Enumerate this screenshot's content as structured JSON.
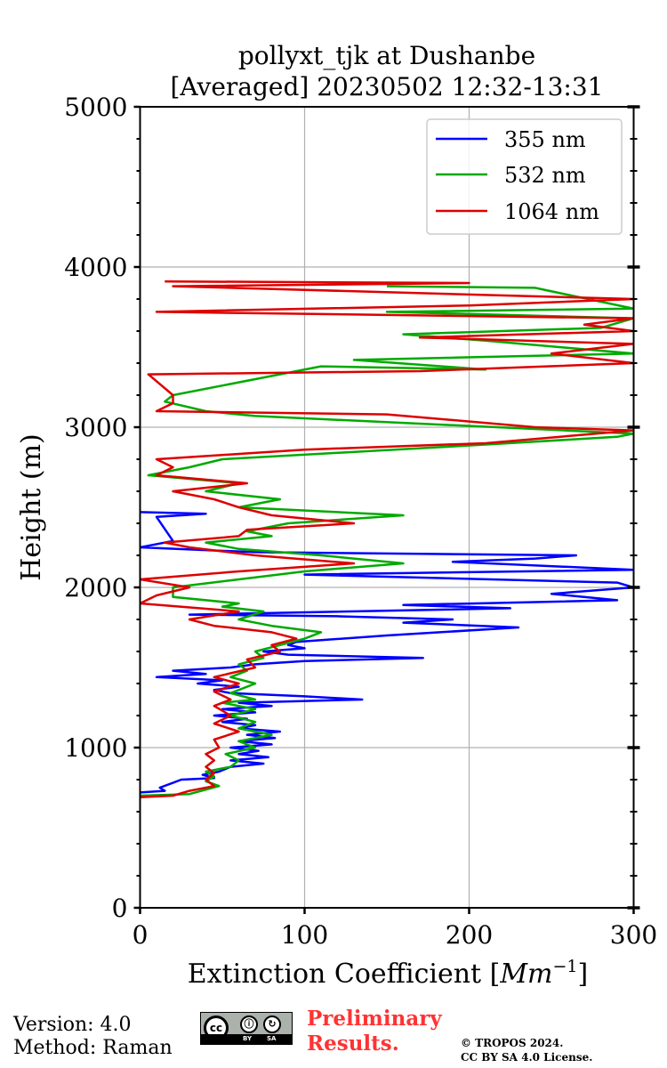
{
  "chart_data": {
    "type": "line",
    "title_line1": "pollyxt_tjk at Dushanbe",
    "title_line2": "[Averaged] 20230502 12:32-13:31",
    "xlabel_text": "Extinction Coefficient [",
    "xlabel_unit_base": "Mm",
    "xlabel_unit_exp": "−1",
    "xlabel_close": "]",
    "ylabel": "Height (m)",
    "xlim": [
      0,
      300
    ],
    "ylim": [
      0,
      5000
    ],
    "xticks": [
      0,
      100,
      200,
      300
    ],
    "yticks": [
      0,
      1000,
      2000,
      3000,
      4000,
      5000
    ],
    "grid": true,
    "legend_position": "top-right",
    "series": [
      {
        "name": "355 nm",
        "color": "#0000ff",
        "points": [
          [
            0,
            720
          ],
          [
            15,
            730
          ],
          [
            12,
            750
          ],
          [
            20,
            780
          ],
          [
            25,
            800
          ],
          [
            45,
            810
          ],
          [
            38,
            830
          ],
          [
            48,
            850
          ],
          [
            55,
            880
          ],
          [
            75,
            900
          ],
          [
            55,
            920
          ],
          [
            78,
            940
          ],
          [
            60,
            960
          ],
          [
            72,
            980
          ],
          [
            55,
            1000
          ],
          [
            80,
            1020
          ],
          [
            60,
            1040
          ],
          [
            82,
            1060
          ],
          [
            65,
            1080
          ],
          [
            85,
            1100
          ],
          [
            60,
            1120
          ],
          [
            70,
            1140
          ],
          [
            50,
            1160
          ],
          [
            65,
            1180
          ],
          [
            45,
            1200
          ],
          [
            70,
            1220
          ],
          [
            50,
            1240
          ],
          [
            80,
            1260
          ],
          [
            60,
            1280
          ],
          [
            135,
            1300
          ],
          [
            100,
            1320
          ],
          [
            55,
            1340
          ],
          [
            45,
            1360
          ],
          [
            60,
            1380
          ],
          [
            35,
            1400
          ],
          [
            50,
            1420
          ],
          [
            10,
            1440
          ],
          [
            40,
            1460
          ],
          [
            20,
            1480
          ],
          [
            55,
            1500
          ],
          [
            70,
            1520
          ],
          [
            100,
            1540
          ],
          [
            172,
            1560
          ],
          [
            90,
            1580
          ],
          [
            75,
            1600
          ],
          [
            100,
            1620
          ],
          [
            90,
            1640
          ],
          [
            95,
            1660
          ],
          [
            150,
            1700
          ],
          [
            230,
            1750
          ],
          [
            160,
            1780
          ],
          [
            190,
            1800
          ],
          [
            120,
            1820
          ],
          [
            30,
            1830
          ],
          [
            225,
            1870
          ],
          [
            160,
            1890
          ],
          [
            290,
            1920
          ],
          [
            250,
            1960
          ],
          [
            300,
            2000
          ],
          [
            290,
            2030
          ],
          [
            100,
            2080
          ],
          [
            300,
            2110
          ],
          [
            190,
            2160
          ],
          [
            240,
            2180
          ],
          [
            265,
            2200
          ],
          [
            70,
            2220
          ],
          [
            0,
            2250
          ],
          [
            20,
            2290
          ],
          [
            10,
            2440
          ],
          [
            40,
            2460
          ],
          [
            0,
            2470
          ]
        ]
      },
      {
        "name": "532 nm",
        "color": "#00aa00",
        "points": [
          [
            0,
            700
          ],
          [
            30,
            710
          ],
          [
            48,
            760
          ],
          [
            40,
            790
          ],
          [
            45,
            820
          ],
          [
            40,
            850
          ],
          [
            55,
            880
          ],
          [
            60,
            920
          ],
          [
            52,
            960
          ],
          [
            70,
            1000
          ],
          [
            60,
            1040
          ],
          [
            80,
            1080
          ],
          [
            60,
            1120
          ],
          [
            70,
            1160
          ],
          [
            55,
            1200
          ],
          [
            70,
            1240
          ],
          [
            50,
            1280
          ],
          [
            70,
            1300
          ],
          [
            55,
            1340
          ],
          [
            70,
            1400
          ],
          [
            55,
            1440
          ],
          [
            65,
            1480
          ],
          [
            60,
            1520
          ],
          [
            75,
            1560
          ],
          [
            70,
            1600
          ],
          [
            85,
            1640
          ],
          [
            100,
            1680
          ],
          [
            110,
            1720
          ],
          [
            80,
            1760
          ],
          [
            60,
            1800
          ],
          [
            75,
            1850
          ],
          [
            50,
            1880
          ],
          [
            60,
            1900
          ],
          [
            20,
            1940
          ],
          [
            20,
            2000
          ],
          [
            60,
            2050
          ],
          [
            100,
            2100
          ],
          [
            160,
            2150
          ],
          [
            110,
            2200
          ],
          [
            60,
            2240
          ],
          [
            40,
            2280
          ],
          [
            80,
            2320
          ],
          [
            65,
            2350
          ],
          [
            90,
            2400
          ],
          [
            160,
            2450
          ],
          [
            60,
            2500
          ],
          [
            85,
            2550
          ],
          [
            40,
            2600
          ],
          [
            60,
            2650
          ],
          [
            5,
            2700
          ],
          [
            30,
            2750
          ],
          [
            50,
            2800
          ],
          [
            190,
            2880
          ],
          [
            290,
            2940
          ],
          [
            300,
            2960
          ],
          [
            70,
            3070
          ],
          [
            40,
            3100
          ],
          [
            15,
            3160
          ],
          [
            20,
            3200
          ],
          [
            110,
            3380
          ],
          [
            210,
            3360
          ],
          [
            130,
            3420
          ],
          [
            300,
            3460
          ],
          [
            210,
            3540
          ],
          [
            160,
            3580
          ],
          [
            280,
            3620
          ],
          [
            300,
            3680
          ],
          [
            150,
            3720
          ],
          [
            300,
            3740
          ],
          [
            240,
            3870
          ],
          [
            150,
            3880
          ]
        ]
      },
      {
        "name": "1064 nm",
        "color": "#dd0000",
        "points": [
          [
            0,
            690
          ],
          [
            20,
            700
          ],
          [
            30,
            730
          ],
          [
            45,
            760
          ],
          [
            40,
            800
          ],
          [
            45,
            840
          ],
          [
            40,
            880
          ],
          [
            45,
            920
          ],
          [
            40,
            960
          ],
          [
            48,
            1000
          ],
          [
            45,
            1050
          ],
          [
            60,
            1100
          ],
          [
            45,
            1150
          ],
          [
            55,
            1200
          ],
          [
            45,
            1260
          ],
          [
            55,
            1300
          ],
          [
            45,
            1350
          ],
          [
            60,
            1400
          ],
          [
            45,
            1440
          ],
          [
            70,
            1500
          ],
          [
            65,
            1550
          ],
          [
            85,
            1600
          ],
          [
            80,
            1640
          ],
          [
            95,
            1680
          ],
          [
            80,
            1720
          ],
          [
            45,
            1760
          ],
          [
            30,
            1800
          ],
          [
            60,
            1850
          ],
          [
            0,
            1900
          ],
          [
            10,
            1950
          ],
          [
            30,
            2000
          ],
          [
            0,
            2050
          ],
          [
            60,
            2100
          ],
          [
            130,
            2150
          ],
          [
            70,
            2200
          ],
          [
            30,
            2250
          ],
          [
            15,
            2280
          ],
          [
            60,
            2320
          ],
          [
            65,
            2360
          ],
          [
            130,
            2400
          ],
          [
            80,
            2450
          ],
          [
            60,
            2500
          ],
          [
            45,
            2550
          ],
          [
            20,
            2600
          ],
          [
            65,
            2650
          ],
          [
            10,
            2700
          ],
          [
            20,
            2750
          ],
          [
            10,
            2800
          ],
          [
            100,
            2860
          ],
          [
            210,
            2900
          ],
          [
            300,
            2980
          ],
          [
            240,
            3000
          ],
          [
            150,
            3080
          ],
          [
            10,
            3100
          ],
          [
            20,
            3150
          ],
          [
            20,
            3200
          ],
          [
            5,
            3330
          ],
          [
            170,
            3350
          ],
          [
            300,
            3400
          ],
          [
            250,
            3460
          ],
          [
            300,
            3520
          ],
          [
            170,
            3560
          ],
          [
            300,
            3600
          ],
          [
            270,
            3640
          ],
          [
            300,
            3680
          ],
          [
            10,
            3720
          ],
          [
            200,
            3760
          ],
          [
            300,
            3800
          ],
          [
            20,
            3880
          ],
          [
            200,
            3900
          ],
          [
            15,
            3910
          ]
        ]
      }
    ]
  },
  "footer": {
    "version": "Version: 4.0",
    "method": "Method: Raman",
    "preliminary_1": "Preliminary",
    "preliminary_2": "Results.",
    "copyright_1": "© TROPOS 2024.",
    "copyright_2": "CC BY SA 4.0 License.",
    "license_badge": {
      "icon": "cc-by-sa-license-icon",
      "cc": "cc",
      "by": "BY",
      "sa": "SA"
    }
  }
}
